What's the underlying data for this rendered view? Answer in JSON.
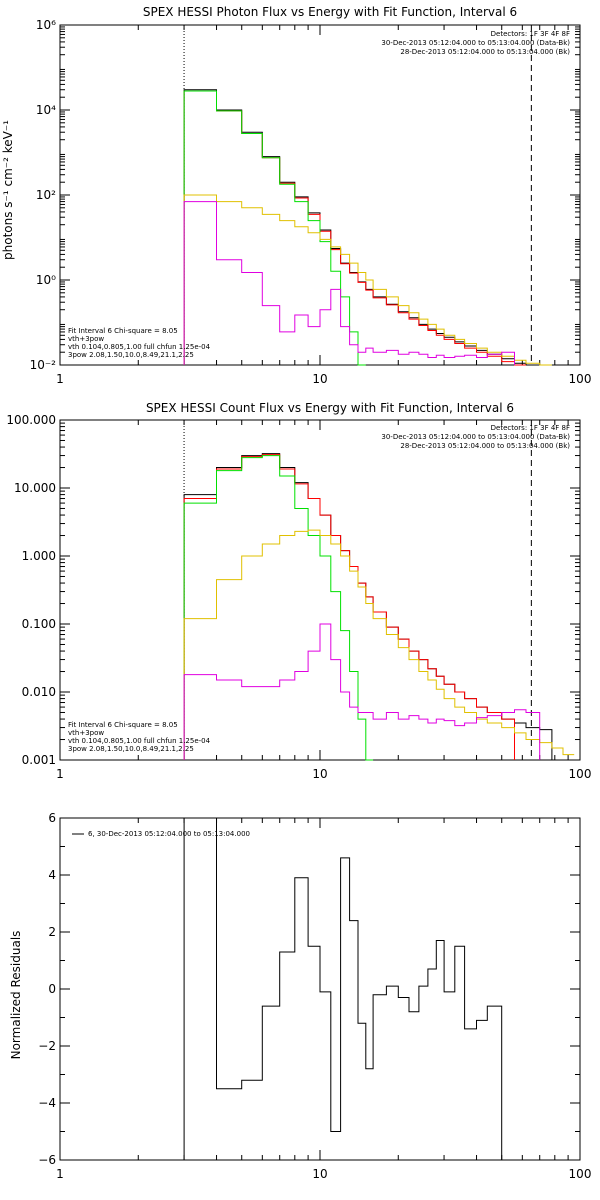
{
  "colors": {
    "background": "#ffffff",
    "axis": "#000000",
    "data_total": "#000000",
    "fit_total": "#ff0000",
    "vth_component": "#00e000",
    "thick_component": "#e0c000",
    "background_component": "#e000e0"
  },
  "chart_data": [
    {
      "type": "line",
      "title": "SPEX HESSI Photon Flux vs Energy with Fit Function, Interval 6",
      "xlabel": "",
      "ylabel": "photons s⁻¹ cm⁻² keV⁻¹",
      "xscale": "log",
      "yscale": "log",
      "xlim": [
        1,
        100
      ],
      "ylim": [
        0.01,
        1000000
      ],
      "x_ticks": [
        1,
        10,
        100
      ],
      "x_tick_labels": [
        "1",
        "10",
        "100"
      ],
      "y_ticks": [
        0.01,
        1,
        100,
        10000,
        1000000
      ],
      "y_tick_labels": [
        "10⁻²",
        "10⁰",
        "10²",
        "10⁴",
        "10⁶"
      ],
      "vlines": [
        {
          "x": 3.0,
          "style": "dotted"
        },
        {
          "x": 65,
          "style": "dashed"
        }
      ],
      "legend_topright": {
        "lines": [
          "Detectors: 1F 3F 4F 8F",
          "30-Dec-2013 05:12:04.000 to 05:13:04.000 (Data-Bk)",
          "28-Dec-2013 05:12:04.000 to 05:13:04.000 (Bk)"
        ]
      },
      "legend_bottomleft": {
        "lines": [
          "Fit Interval 6   Chi-square = 8.05",
          "vth+3pow",
          "vth 0.104,0.805,1.00  full chfun 1.25e-04",
          "3pow 2.08,1.50,10.0,8.49,21.1,2.25"
        ]
      },
      "bin_edges": [
        3,
        4,
        5,
        6,
        7,
        8,
        9,
        10,
        11,
        12,
        13,
        14,
        15,
        16,
        18,
        20,
        22,
        24,
        26,
        28,
        30,
        33,
        36,
        40,
        44,
        50,
        56,
        62,
        70,
        78,
        86,
        95
      ],
      "series": [
        {
          "color": "#000000",
          "values": [
            30000,
            10000,
            3000,
            800,
            200,
            90,
            38,
            15,
            5.5,
            2.5,
            1.5,
            0.9,
            0.6,
            0.4,
            0.27,
            0.18,
            0.13,
            0.09,
            0.07,
            0.055,
            0.045,
            0.035,
            0.028,
            0.022,
            0.018,
            0.014,
            0.011,
            null,
            null,
            null,
            null
          ]
        },
        {
          "color": "#ff0000",
          "values": [
            28000,
            9500,
            2800,
            750,
            190,
            85,
            35,
            14,
            5.2,
            2.4,
            1.45,
            0.88,
            0.58,
            0.38,
            0.26,
            0.17,
            0.12,
            0.085,
            0.065,
            0.05,
            0.04,
            0.032,
            0.025,
            0.02,
            0.016,
            0.012,
            0.009,
            null,
            null,
            null,
            null
          ]
        },
        {
          "color": "#00e000",
          "values": [
            28000,
            9500,
            2800,
            750,
            180,
            70,
            25,
            8,
            1.6,
            0.4,
            0.06,
            0.01,
            null,
            null,
            null,
            null,
            null,
            null,
            null,
            null,
            null,
            null,
            null,
            null,
            null,
            null,
            null,
            null,
            null,
            null,
            null
          ]
        },
        {
          "color": "#e0c000",
          "values": [
            100,
            70,
            50,
            35,
            25,
            18,
            13,
            9,
            6,
            4,
            2.5,
            1.5,
            1.0,
            0.6,
            0.4,
            0.25,
            0.17,
            0.12,
            0.09,
            0.07,
            0.05,
            0.04,
            0.032,
            0.025,
            0.02,
            0.016,
            0.013,
            0.011,
            0.01,
            null,
            null
          ]
        },
        {
          "color": "#e000e0",
          "values": [
            70,
            3,
            1.5,
            0.25,
            0.06,
            0.15,
            0.08,
            0.2,
            0.6,
            0.08,
            0.03,
            0.02,
            0.025,
            0.02,
            0.022,
            0.018,
            0.02,
            0.018,
            0.015,
            0.017,
            0.015,
            0.016,
            0.017,
            0.015,
            0.018,
            0.02,
            null,
            null,
            null,
            null,
            null
          ]
        }
      ]
    },
    {
      "type": "line",
      "title": "SPEX HESSI Count Flux vs Energy with Fit Function, Interval 6",
      "xlabel": "",
      "ylabel": "",
      "xscale": "log",
      "yscale": "log",
      "xlim": [
        1,
        100
      ],
      "ylim": [
        0.001,
        100
      ],
      "x_ticks": [
        1,
        10,
        100
      ],
      "x_tick_labels": [
        "1",
        "10",
        "100"
      ],
      "y_ticks": [
        0.001,
        0.01,
        0.1,
        1,
        10,
        100
      ],
      "y_tick_labels": [
        "0.001",
        "0.010",
        "0.100",
        "1.000",
        "10.000",
        "100.000"
      ],
      "vlines": [
        {
          "x": 3.0,
          "style": "dotted"
        },
        {
          "x": 65,
          "style": "dashed"
        }
      ],
      "legend_topright": {
        "lines": [
          "Detectors: 1F 3F 4F 8F",
          "30-Dec-2013 05:12:04.000 to 05:13:04.000 (Data-Bk)",
          "28-Dec-2013 05:12:04.000 to 05:13:04.000 (Bk)"
        ]
      },
      "legend_bottomleft": {
        "lines": [
          "Fit Interval 6   Chi-square = 8.05",
          "vth+3pow",
          "vth 0.104,0.805,1.00  full chfun 1.25e-04",
          "3pow 2.08,1.50,10.0,8.49,21.1,2.25"
        ]
      },
      "bin_edges": [
        3,
        4,
        5,
        6,
        7,
        8,
        9,
        10,
        11,
        12,
        13,
        14,
        15,
        16,
        18,
        20,
        22,
        24,
        26,
        28,
        30,
        33,
        36,
        40,
        44,
        50,
        56,
        62,
        70,
        78,
        86,
        95
      ],
      "series": [
        {
          "color": "#000000",
          "values": [
            8,
            20,
            30,
            32,
            20,
            12,
            7,
            4,
            2,
            1.2,
            0.7,
            0.4,
            0.25,
            0.15,
            0.09,
            0.06,
            0.04,
            0.03,
            0.022,
            0.017,
            0.013,
            0.01,
            0.008,
            0.006,
            0.005,
            0.004,
            0.0035,
            0.003,
            0.0028,
            null,
            null
          ]
        },
        {
          "color": "#ff0000",
          "values": [
            7,
            19,
            29,
            31,
            19,
            11.5,
            7,
            4,
            2,
            1.2,
            0.7,
            0.4,
            0.25,
            0.15,
            0.09,
            0.06,
            0.04,
            0.03,
            0.022,
            0.017,
            0.013,
            0.01,
            0.008,
            0.006,
            0.005,
            0.004,
            null,
            null,
            null,
            null,
            null
          ]
        },
        {
          "color": "#00e000",
          "values": [
            6,
            18,
            28,
            30,
            15,
            5,
            2,
            1,
            0.3,
            0.08,
            0.02,
            0.004,
            0.001,
            null,
            null,
            null,
            null,
            null,
            null,
            null,
            null,
            null,
            null,
            null,
            null,
            null,
            null,
            null,
            null,
            null,
            null
          ]
        },
        {
          "color": "#e0c000",
          "values": [
            0.12,
            0.45,
            1.0,
            1.5,
            2.0,
            2.3,
            2.4,
            2.0,
            1.5,
            1.0,
            0.6,
            0.35,
            0.2,
            0.12,
            0.07,
            0.045,
            0.03,
            0.02,
            0.015,
            0.011,
            0.008,
            0.006,
            0.005,
            0.004,
            0.0035,
            0.003,
            0.0025,
            0.002,
            0.0018,
            0.0015,
            0.0012
          ]
        },
        {
          "color": "#e000e0",
          "values": [
            0.018,
            0.015,
            0.012,
            0.012,
            0.015,
            0.02,
            0.04,
            0.1,
            0.03,
            0.01,
            0.006,
            0.005,
            0.005,
            0.004,
            0.005,
            0.004,
            0.0045,
            0.004,
            0.0035,
            0.004,
            0.0038,
            0.0032,
            0.0035,
            0.0042,
            0.0045,
            0.005,
            0.0055,
            0.005,
            null,
            null,
            null
          ]
        }
      ]
    },
    {
      "type": "line",
      "title": "",
      "xlabel": "",
      "ylabel": "Normalized Residuals",
      "xscale": "log",
      "yscale": "linear",
      "xlim": [
        1,
        100
      ],
      "ylim": [
        -6,
        6
      ],
      "x_ticks": [
        1,
        10,
        100
      ],
      "x_tick_labels": [
        "1",
        "10",
        "100"
      ],
      "y_ticks": [
        -6,
        -4,
        -2,
        0,
        2,
        4,
        6
      ],
      "y_tick_labels": [
        "−6",
        "−4",
        "−2",
        "0",
        "2",
        "4",
        "6"
      ],
      "legend_topleft": {
        "lines": [
          "6, 30-Dec-2013 05:12:04.000 to 05:13:04.000"
        ]
      },
      "bin_edges": [
        3,
        4,
        5,
        6,
        7,
        8,
        9,
        10,
        11,
        12,
        13,
        14,
        15,
        16,
        18,
        20,
        22,
        24,
        26,
        28,
        30,
        33,
        36,
        40,
        44,
        50,
        56,
        62,
        70
      ],
      "series": [
        {
          "color": "#000000",
          "values": [
            6.1,
            -3.5,
            -3.2,
            -0.6,
            1.3,
            3.9,
            1.5,
            -0.1,
            -5.0,
            4.6,
            2.4,
            -1.2,
            -2.8,
            -0.2,
            0.1,
            -0.3,
            -0.8,
            0.1,
            0.7,
            1.7,
            -0.1,
            1.5,
            -1.4,
            -1.1,
            -0.6,
            null,
            null,
            null
          ]
        }
      ]
    }
  ]
}
